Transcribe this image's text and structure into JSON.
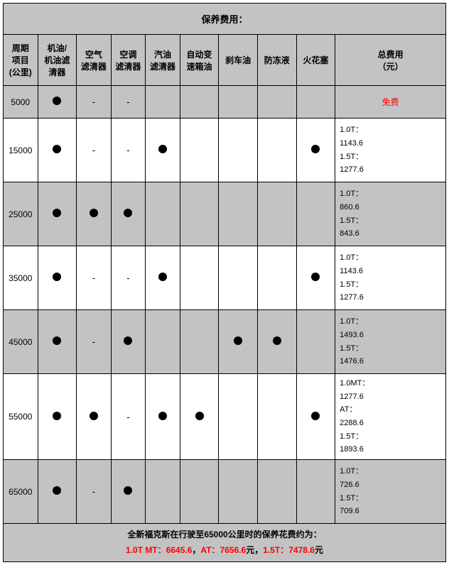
{
  "title": "保养费用：",
  "columns": [
    "周期\n项目\n(公里)",
    "机油/\n机油滤\n清器",
    "空气\n滤清器",
    "空调\n滤清器",
    "汽油\n滤清器",
    "自动变\n速箱油",
    "刹车油",
    "防冻液",
    "火花塞",
    "总费用\n（元）"
  ],
  "col_widths": [
    "48",
    "54",
    "48",
    "48",
    "48",
    "54",
    "54",
    "54",
    "54",
    "154"
  ],
  "marks": {
    "dot": "●",
    "dash": "-",
    "blank": ""
  },
  "rows": [
    {
      "alt": true,
      "short": true,
      "km": "5000",
      "cells": [
        "dot",
        "dash",
        "dash",
        "blank",
        "blank",
        "blank",
        "blank",
        "blank"
      ],
      "cost_type": "free",
      "cost_text": "免费"
    },
    {
      "alt": false,
      "km": "15000",
      "cells": [
        "dot",
        "dash",
        "dash",
        "dot",
        "blank",
        "blank",
        "blank",
        "dot"
      ],
      "cost_lines": [
        "1.0T：",
        "1143.6",
        "1.5T：",
        "1277.6"
      ]
    },
    {
      "alt": true,
      "km": "25000",
      "cells": [
        "dot",
        "dot",
        "dot",
        "blank",
        "blank",
        "blank",
        "blank",
        "blank"
      ],
      "cost_lines": [
        "1.0T：",
        "860.6",
        "1.5T：",
        "843.6"
      ]
    },
    {
      "alt": false,
      "km": "35000",
      "cells": [
        "dot",
        "dash",
        "dash",
        "dot",
        "blank",
        "blank",
        "blank",
        "dot"
      ],
      "cost_lines": [
        "1.0T：",
        "1143.6",
        "1.5T：",
        "1277.6"
      ]
    },
    {
      "alt": true,
      "km": "45000",
      "cells": [
        "dot",
        "dash",
        "dot",
        "blank",
        "blank",
        "dot",
        "dot",
        "blank"
      ],
      "cost_lines": [
        "1.0T：",
        "1493.6",
        "1.5T：",
        "1476.6"
      ]
    },
    {
      "alt": false,
      "km": "55000",
      "cells": [
        "dot",
        "dot",
        "dash",
        "dot",
        "dot",
        "blank",
        "blank",
        "dot"
      ],
      "cost_lines": [
        "1.0MT：",
        "1277.6",
        "AT：",
        "2288.6",
        "1.5T：",
        "1893.6"
      ]
    },
    {
      "alt": true,
      "km": "65000",
      "cells": [
        "dot",
        "dash",
        "dot",
        "blank",
        "blank",
        "blank",
        "blank",
        "blank"
      ],
      "cost_lines": [
        "1.0T：",
        "726.6",
        "1.5T：",
        "709.6"
      ]
    }
  ],
  "footer": {
    "line1": "全新福克斯在行驶至65000公里时的保养花费约为：",
    "parts": [
      {
        "text": "1.0T MT：6645.6",
        "red": true
      },
      {
        "text": "，",
        "red": false
      },
      {
        "text": "AT：7656.6",
        "red": true
      },
      {
        "text": "元，",
        "red": false
      },
      {
        "text": "1.5T：7478.6",
        "red": true
      },
      {
        "text": "元",
        "red": false
      }
    ]
  }
}
